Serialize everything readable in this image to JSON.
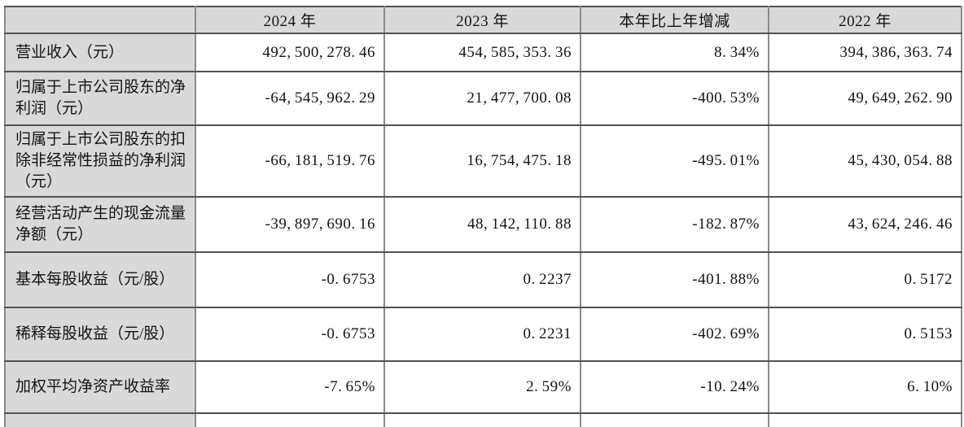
{
  "table": {
    "columns": [
      "",
      "2024 年",
      "2023 年",
      "本年比上年增减",
      "2022 年"
    ],
    "rows": [
      {
        "label": "营业收入（元）",
        "values": [
          "492,500,278.46",
          "454,585,353.36",
          "8.34%",
          "394,386,363.74"
        ]
      },
      {
        "label": "归属于上市公司股东的净利润（元）",
        "values": [
          "-64,545,962.29",
          "21,477,700.08",
          "-400.53%",
          "49,649,262.90"
        ]
      },
      {
        "label": "归属于上市公司股东的扣除非经常性损益的净利润（元）",
        "values": [
          "-66,181,519.76",
          "16,754,475.18",
          "-495.01%",
          "45,430,054.88"
        ]
      },
      {
        "label": "经营活动产生的现金流量净额（元）",
        "values": [
          "-39,897,690.16",
          "48,142,110.88",
          "-182.87%",
          "43,624,246.46"
        ]
      },
      {
        "label": "基本每股收益（元/股）",
        "values": [
          "-0.6753",
          "0.2237",
          "-401.88%",
          "0.5172"
        ]
      },
      {
        "label": "稀释每股收益（元/股）",
        "values": [
          "-0.6753",
          "0.2231",
          "-402.69%",
          "0.5153"
        ]
      },
      {
        "label": "加权平均净资产收益率",
        "values": [
          "-7.65%",
          "2.59%",
          "-10.24%",
          "6.10%"
        ]
      }
    ]
  },
  "colors": {
    "background": "#ffffff",
    "cell_fill_gray": "#d9d9d9",
    "grid_vertical": "#8c8c8c",
    "grid_horizontal": "#525252",
    "text": "#141414"
  }
}
